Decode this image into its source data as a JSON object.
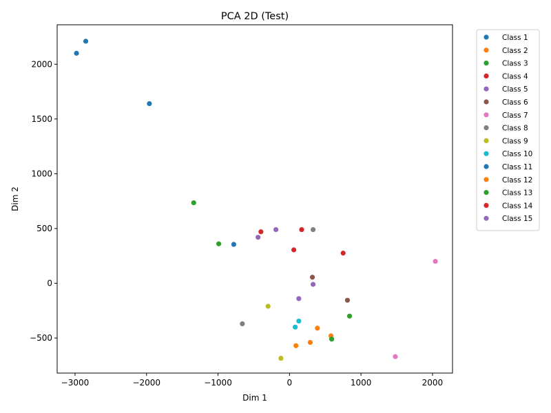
{
  "chart_data": {
    "type": "scatter",
    "title": "PCA 2D (Test)",
    "xlabel": "Dim 1",
    "ylabel": "Dim 2",
    "xlim": [
      -3250,
      2280
    ],
    "ylim": [
      -820,
      2360
    ],
    "xticks": [
      -3000,
      -2000,
      -1000,
      0,
      1000,
      2000
    ],
    "yticks": [
      -500,
      0,
      500,
      1000,
      1500,
      2000
    ],
    "grid": false,
    "legend_position": "outside-right-top",
    "series": [
      {
        "name": "Class 1",
        "color": "#1f77b4",
        "points": [
          [
            -2850,
            2210
          ],
          [
            -2980,
            2100
          ],
          [
            -1960,
            1640
          ]
        ]
      },
      {
        "name": "Class 2",
        "color": "#ff7f0e",
        "points": [
          [
            390,
            -410
          ],
          [
            580,
            -480
          ],
          [
            290,
            -540
          ]
        ]
      },
      {
        "name": "Class 3",
        "color": "#2ca02c",
        "points": [
          [
            -1340,
            735
          ],
          [
            -990,
            360
          ],
          [
            840,
            -300
          ]
        ]
      },
      {
        "name": "Class 4",
        "color": "#d62728",
        "points": [
          [
            -400,
            470
          ],
          [
            60,
            305
          ],
          [
            750,
            275
          ]
        ]
      },
      {
        "name": "Class 5",
        "color": "#9467bd",
        "points": [
          [
            -440,
            420
          ],
          [
            -190,
            490
          ],
          [
            330,
            -10
          ]
        ]
      },
      {
        "name": "Class 6",
        "color": "#8c564b",
        "points": [
          [
            320,
            55
          ],
          [
            810,
            -155
          ]
        ]
      },
      {
        "name": "Class 7",
        "color": "#e377c2",
        "points": [
          [
            2040,
            200
          ],
          [
            1480,
            -670
          ]
        ]
      },
      {
        "name": "Class 8",
        "color": "#7f7f7f",
        "points": [
          [
            330,
            490
          ],
          [
            -660,
            -370
          ]
        ]
      },
      {
        "name": "Class 9",
        "color": "#bcbd22",
        "points": [
          [
            -300,
            -210
          ],
          [
            -120,
            -685
          ]
        ]
      },
      {
        "name": "Class 10",
        "color": "#17becf",
        "points": [
          [
            130,
            -345
          ],
          [
            80,
            -400
          ]
        ]
      },
      {
        "name": "Class 11",
        "color": "#1f77b4",
        "points": [
          [
            -780,
            355
          ]
        ]
      },
      {
        "name": "Class 12",
        "color": "#ff7f0e",
        "points": [
          [
            90,
            -570
          ]
        ]
      },
      {
        "name": "Class 13",
        "color": "#2ca02c",
        "points": [
          [
            590,
            -510
          ]
        ]
      },
      {
        "name": "Class 14",
        "color": "#d62728",
        "points": [
          [
            170,
            490
          ]
        ]
      },
      {
        "name": "Class 15",
        "color": "#9467bd",
        "points": [
          [
            130,
            -140
          ]
        ]
      }
    ]
  }
}
